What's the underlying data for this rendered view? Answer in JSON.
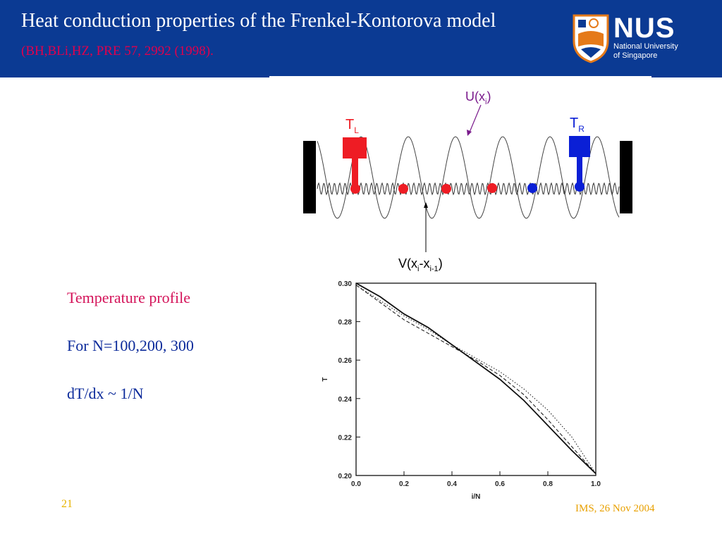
{
  "header": {
    "title": "Heat conduction properties of the Frenkel-Kontorova model",
    "reference": "(BH,BLi,HZ, PRE 57, 2992 (1998)."
  },
  "logo": {
    "name": "NUS",
    "subtitle_line1": "National University",
    "subtitle_line2": "of Singapore"
  },
  "schematic": {
    "label_TL": "T",
    "label_TL_sub": "L",
    "label_TR": "T",
    "label_TR_sub": "R",
    "label_U": "U(x",
    "label_U_sub": "i",
    "label_V": "V(x",
    "label_V_sub1": "i",
    "label_V_mid": "-x",
    "label_V_sub2": "i-1",
    "colors": {
      "hot": "#ee1c24",
      "cold": "#0a1fd6"
    }
  },
  "bullets": [
    "Temperature profile",
    "For N=100,200, 300",
    "dT/dx ~ 1/N"
  ],
  "chart_data": {
    "type": "line",
    "xlabel": "i/N",
    "ylabel": "T",
    "xlim": [
      0.0,
      1.0
    ],
    "ylim": [
      0.2,
      0.3
    ],
    "x_ticks": [
      "0.0",
      "0.2",
      "0.4",
      "0.6",
      "0.8",
      "1.0"
    ],
    "y_ticks": [
      "0.20",
      "0.22",
      "0.24",
      "0.26",
      "0.28",
      "0.30"
    ],
    "series": [
      {
        "style": "solid",
        "x": [
          0.0,
          0.1,
          0.2,
          0.3,
          0.4,
          0.5,
          0.6,
          0.7,
          0.8,
          0.9,
          1.0
        ],
        "y": [
          0.3,
          0.293,
          0.284,
          0.277,
          0.268,
          0.259,
          0.25,
          0.239,
          0.226,
          0.213,
          0.201
        ]
      },
      {
        "style": "dashed",
        "x": [
          0.0,
          0.1,
          0.2,
          0.3,
          0.4,
          0.5,
          0.6,
          0.7,
          0.8,
          0.9,
          1.0
        ],
        "y": [
          0.299,
          0.29,
          0.281,
          0.274,
          0.267,
          0.26,
          0.252,
          0.242,
          0.229,
          0.215,
          0.201
        ]
      },
      {
        "style": "dotted",
        "x": [
          0.0,
          0.1,
          0.2,
          0.3,
          0.4,
          0.5,
          0.6,
          0.7,
          0.8,
          0.9,
          1.0
        ],
        "y": [
          0.299,
          0.291,
          0.283,
          0.276,
          0.268,
          0.261,
          0.254,
          0.245,
          0.234,
          0.22,
          0.201
        ]
      }
    ]
  },
  "footer": {
    "slide_number": "21",
    "event": "IMS, 26 Nov 2004"
  }
}
